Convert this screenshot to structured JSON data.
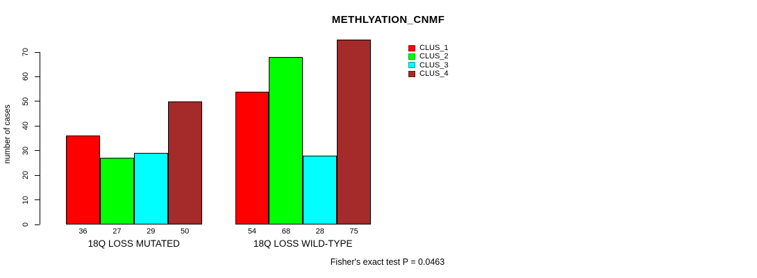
{
  "chart_data": {
    "type": "bar",
    "title": "METHLYATION_CNMF",
    "ylabel": "number of cases",
    "xlabel": "",
    "categories": [
      "18Q LOSS MUTATED",
      "18Q LOSS WILD-TYPE"
    ],
    "series": [
      {
        "name": "CLUS_1",
        "color": "#FF0000",
        "values": [
          36,
          54
        ]
      },
      {
        "name": "CLUS_2",
        "color": "#00FF00",
        "values": [
          27,
          68
        ]
      },
      {
        "name": "CLUS_3",
        "color": "#00FFFF",
        "values": [
          29,
          28
        ]
      },
      {
        "name": "CLUS_4",
        "color": "#A52A2A",
        "values": [
          50,
          75
        ]
      }
    ],
    "ylim": [
      0,
      70
    ],
    "yticks": [
      0,
      10,
      20,
      30,
      40,
      50,
      60,
      70
    ],
    "grid": false,
    "legend_position": "top-right",
    "bar_value_labels": true,
    "annotation": "Fisher's exact test P = 0.0463"
  }
}
